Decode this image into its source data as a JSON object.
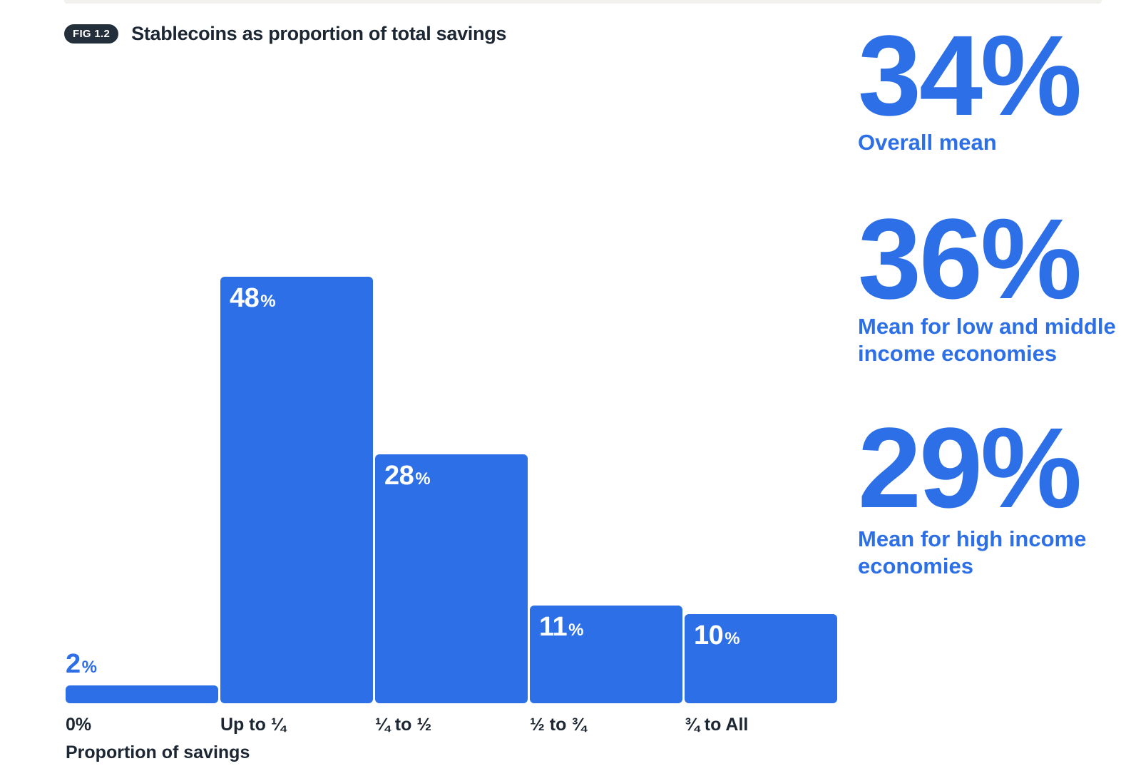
{
  "figure": {
    "tag": "FIG 1.2",
    "title": "Stablecoins as proportion of total savings"
  },
  "chart_data": {
    "type": "bar",
    "title": "Stablecoins as proportion of total savings",
    "categories": [
      "0%",
      "Up to ¼",
      "¼ to ½",
      "½ to ¾",
      "¾ to All"
    ],
    "values": [
      2,
      48,
      28,
      11,
      10
    ],
    "unit": "%",
    "xlabel": "Proportion of savings",
    "ylabel": "",
    "ylim": [
      0,
      50
    ],
    "grid": false,
    "legend": "none",
    "bar_color": "#2d6fe7",
    "value_label_positions": [
      "above",
      "inside",
      "inside",
      "inside",
      "inside"
    ]
  },
  "stats": [
    {
      "value": "34%",
      "label": "Overall mean"
    },
    {
      "value": "36%",
      "label": "Mean for low and middle\nincome economies"
    },
    {
      "value": "29%",
      "label": "Mean for high income\neconomies"
    }
  ],
  "colors": {
    "accent_blue": "#2d6fe7",
    "dark_text": "#1c2733",
    "badge_background": "#232f3b",
    "inside_label_text": "#ffffff",
    "top_strip": "#f2f1ee",
    "page_background": "#ffffff"
  }
}
